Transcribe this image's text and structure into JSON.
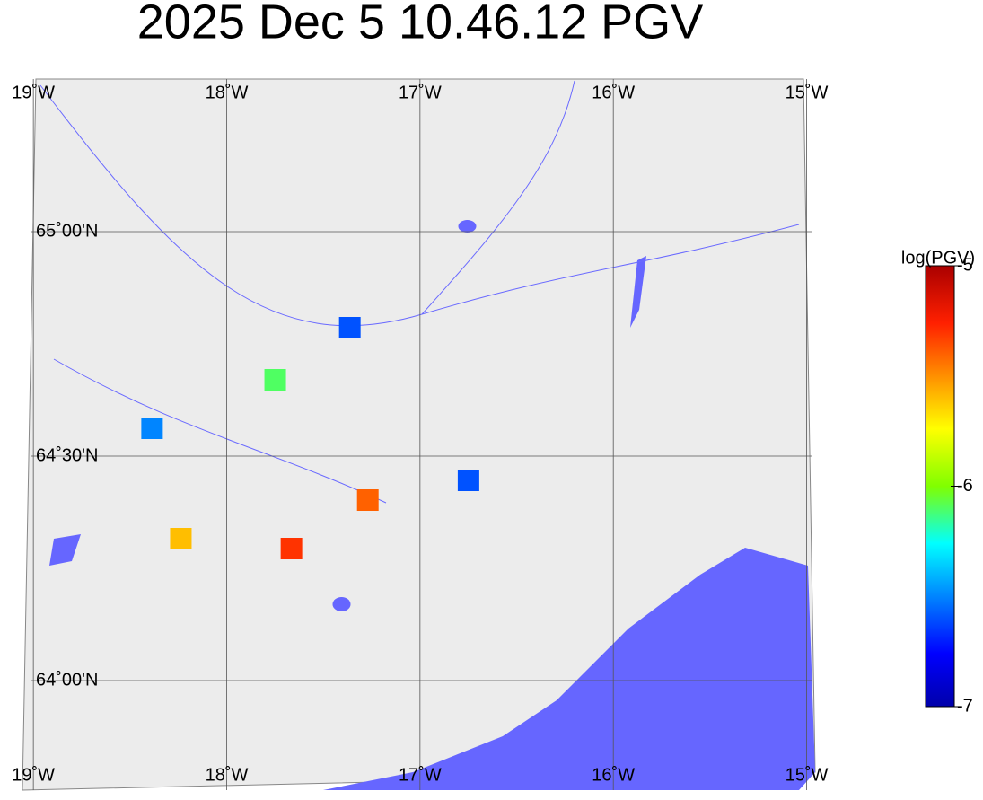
{
  "chart_data": {
    "type": "map",
    "title": "2025 Dec 5 10.46.12 PGV",
    "xlim": [
      -19.01,
      -14.97
    ],
    "ylim": [
      63.756,
      65.34
    ],
    "xticks": [
      {
        "value": -19,
        "label": "19˚W"
      },
      {
        "value": -18,
        "label": "18˚W"
      },
      {
        "value": -17,
        "label": "17˚W"
      },
      {
        "value": -16,
        "label": "16˚W"
      },
      {
        "value": -15,
        "label": "15˚W"
      }
    ],
    "yticks": [
      {
        "value": 65,
        "label": "65˚00'N"
      },
      {
        "value": 64.5,
        "label": "64˚30'N"
      },
      {
        "value": 64,
        "label": "64˚00'N"
      }
    ],
    "grid": true,
    "colormap": "jet",
    "colorbar": {
      "label": "log(PGV)",
      "clim": [
        -7,
        -5
      ],
      "ticks": [
        -5,
        -6,
        -7
      ]
    },
    "stations": {
      "lon": [
        -17.363,
        -17.749,
        -18.386,
        -18.237,
        -17.27,
        -17.665,
        -16.749
      ],
      "lat": [
        64.786,
        64.67,
        64.562,
        64.316,
        64.402,
        64.294,
        64.446
      ],
      "values": [
        -6.6,
        -6.1,
        -6.5,
        -5.6,
        -5.4,
        -5.3,
        -6.6
      ]
    }
  }
}
